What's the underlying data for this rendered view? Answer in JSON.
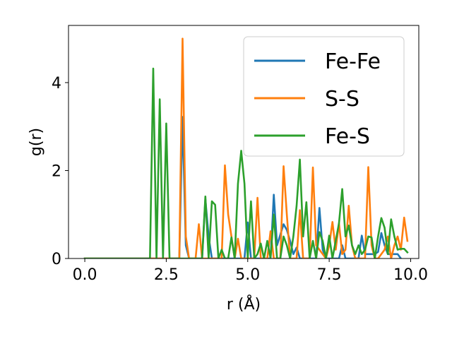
{
  "chart_data": {
    "type": "line",
    "title": "",
    "xlabel": "r (Å)",
    "ylabel": "g(r)",
    "xlim": [
      -0.5,
      10.25
    ],
    "ylim": [
      0,
      5.3
    ],
    "xticks": [
      0.0,
      2.5,
      5.0,
      7.5,
      10.0
    ],
    "xtick_labels": [
      "0.0",
      "2.5",
      "5.0",
      "7.5",
      "10.0"
    ],
    "yticks": [
      0,
      2,
      4
    ],
    "ytick_labels": [
      "0",
      "2",
      "4"
    ],
    "grid": false,
    "legend_position": "top-right",
    "series": [
      {
        "name": "Fe-Fe",
        "color": "#1f77b4",
        "x": [
          0.0,
          2.9,
          3.0,
          3.1,
          3.2,
          3.6,
          3.7,
          3.8,
          3.9,
          4.9,
          5.0,
          5.1,
          5.7,
          5.8,
          5.9,
          6.1,
          6.2,
          6.3,
          6.4,
          6.5,
          6.6,
          7.1,
          7.2,
          7.3,
          7.4,
          7.8,
          7.9,
          8.0,
          8.4,
          8.5,
          8.6,
          8.9,
          9.0,
          9.1,
          9.2,
          9.3,
          9.6,
          9.7
        ],
        "y": [
          0,
          0,
          3.22,
          0.3,
          0,
          0,
          1.35,
          0.5,
          0,
          0,
          0.82,
          0,
          0,
          1.45,
          0.3,
          0.78,
          0.65,
          0.4,
          0.1,
          0.25,
          0,
          0,
          1.15,
          0.2,
          0,
          0,
          0.3,
          0,
          0,
          0.52,
          0.1,
          0.1,
          0.15,
          0.58,
          0.3,
          0.1,
          0.1,
          0
        ]
      },
      {
        "name": "S-S",
        "color": "#ff7f0e",
        "x": [
          0.0,
          2.9,
          3.0,
          3.1,
          3.2,
          3.4,
          3.5,
          3.6,
          4.2,
          4.3,
          4.4,
          4.6,
          4.7,
          4.8,
          5.2,
          5.3,
          5.4,
          5.6,
          5.7,
          5.8,
          6.0,
          6.1,
          6.2,
          6.3,
          6.5,
          6.6,
          6.7,
          6.8,
          6.9,
          7.0,
          7.1,
          7.4,
          7.5,
          7.6,
          7.7,
          7.8,
          7.9,
          8.0,
          8.1,
          8.2,
          8.3,
          8.6,
          8.7,
          8.8,
          8.9,
          9.0,
          9.2,
          9.3,
          9.4,
          9.5,
          9.6,
          9.7,
          9.8,
          9.9
        ],
        "y": [
          0,
          0,
          5.0,
          0.5,
          0,
          0,
          0.78,
          0,
          0,
          2.12,
          1.0,
          0,
          0.45,
          0,
          0,
          1.38,
          0,
          0,
          0.62,
          0,
          0,
          2.1,
          1.0,
          0,
          0,
          1.1,
          0,
          0,
          0,
          2.07,
          0.3,
          0,
          0.3,
          0.83,
          0.2,
          0.8,
          0.1,
          0.2,
          1.2,
          0.3,
          0,
          0,
          2.08,
          0.3,
          0,
          0,
          0.2,
          0.5,
          0,
          0.3,
          0.5,
          0.2,
          0.93,
          0.4
        ]
      },
      {
        "name": "Fe-S",
        "color": "#2ca02c",
        "x": [
          0.0,
          2.0,
          2.1,
          2.2,
          2.3,
          2.4,
          2.5,
          2.6,
          3.6,
          3.7,
          3.8,
          3.9,
          4.0,
          4.1,
          4.2,
          4.3,
          4.4,
          4.5,
          4.6,
          4.7,
          4.8,
          4.9,
          5.0,
          5.1,
          5.2,
          5.3,
          5.4,
          5.5,
          5.6,
          5.7,
          5.8,
          5.9,
          6.0,
          6.1,
          6.2,
          6.3,
          6.4,
          6.5,
          6.6,
          6.7,
          6.8,
          6.9,
          7.0,
          7.1,
          7.2,
          7.3,
          7.4,
          7.5,
          7.6,
          7.7,
          7.8,
          7.9,
          8.0,
          8.1,
          8.2,
          8.3,
          8.4,
          8.5,
          8.6,
          8.7,
          8.8,
          8.9,
          9.0,
          9.1,
          9.2,
          9.3,
          9.4,
          9.5,
          9.6,
          9.7,
          9.8,
          9.9
        ],
        "y": [
          0,
          0,
          4.32,
          0,
          3.62,
          0,
          3.07,
          0,
          0,
          1.41,
          0,
          1.3,
          1.22,
          0,
          0.2,
          0,
          0,
          0.48,
          0,
          1.7,
          2.45,
          1.7,
          0,
          1.3,
          0,
          0.1,
          0.34,
          0,
          0.4,
          0,
          1.0,
          0,
          0,
          0.5,
          0.3,
          0,
          0.5,
          1.2,
          2.25,
          0.5,
          1.28,
          0,
          0.4,
          0,
          0.6,
          0.4,
          0,
          0.52,
          0,
          0.4,
          0.8,
          1.58,
          0.5,
          0.75,
          0.3,
          0.1,
          0.3,
          0.1,
          0.2,
          0.5,
          0.48,
          0,
          0.5,
          0.92,
          0.7,
          0.1,
          0.89,
          0.5,
          0.2,
          0.22,
          0.22,
          0.14
        ]
      }
    ]
  }
}
